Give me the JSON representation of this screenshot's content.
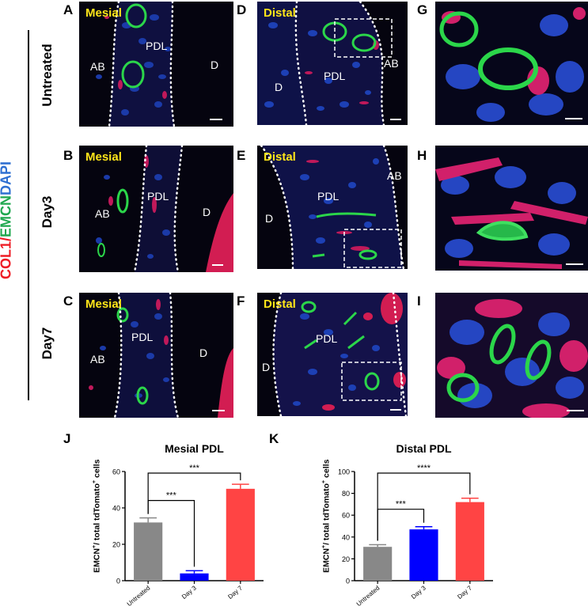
{
  "figure": {
    "side_label": {
      "col1": "COL1",
      "slash1": "/",
      "emcn": "EMCN",
      "slash2": "/",
      "dapi": "DAPI"
    },
    "colors": {
      "col1": "#ee1c25",
      "emcn": "#1fa84f",
      "dapi": "#2f6fd1",
      "yellow": "#ffe619",
      "dots": "#ffffff"
    },
    "row_labels": [
      "Untreated",
      "Day3",
      "Day7"
    ],
    "panels": [
      {
        "letter": "A",
        "tag": "Mesial",
        "labels": {
          "ab": "AB",
          "pdl": "PDL",
          "d": "D"
        }
      },
      {
        "letter": "D",
        "tag": "Distal",
        "labels": {
          "ab": "AB",
          "pdl": "PDL",
          "d": "D"
        }
      },
      {
        "letter": "G"
      },
      {
        "letter": "B",
        "tag": "Mesial",
        "labels": {
          "ab": "AB",
          "pdl": "PDL",
          "d": "D"
        }
      },
      {
        "letter": "E",
        "tag": "Distal",
        "labels": {
          "ab": "AB",
          "pdl": "PDL",
          "d": "D"
        }
      },
      {
        "letter": "H"
      },
      {
        "letter": "C",
        "tag": "Mesial",
        "labels": {
          "ab": "AB",
          "pdl": "PDL",
          "d": "D"
        }
      },
      {
        "letter": "F",
        "tag": "Distal",
        "labels": {
          "pdl": "PDL",
          "d": "D"
        }
      },
      {
        "letter": "I"
      }
    ]
  },
  "charts": {
    "J": {
      "letter": "J",
      "ylabel_main": "EMCN",
      "ylabel_sup1": "+",
      "ylabel_mid": "/ total tdTomato",
      "ylabel_sup2": "+",
      "ylabel_end": " cells"
    },
    "K": {
      "letter": "K",
      "ylabel_main": "EMCN",
      "ylabel_sup1": "+",
      "ylabel_mid": "/ total tdTomato",
      "ylabel_sup2": "+",
      "ylabel_end": " cells"
    }
  },
  "chart_data": [
    {
      "type": "bar",
      "title": "Mesial PDL",
      "categories": [
        "Untreated",
        "Day 3",
        "Day 7"
      ],
      "values": [
        32,
        4,
        50.5
      ],
      "errors": [
        2.5,
        1.5,
        2.5
      ],
      "colors": [
        "#888888",
        "#0000ff",
        "#ff4444"
      ],
      "ylim": [
        0,
        60
      ],
      "yticks": [
        0,
        20,
        40,
        60
      ],
      "significance": [
        {
          "from": "Untreated",
          "to": "Day 3",
          "label": "***"
        },
        {
          "from": "Untreated",
          "to": "Day 7",
          "label": "***"
        }
      ]
    },
    {
      "type": "bar",
      "title": "Distal PDL",
      "categories": [
        "Untreated",
        "Day 3",
        "Day 7"
      ],
      "values": [
        31,
        47,
        72
      ],
      "errors": [
        2,
        2.5,
        3.5
      ],
      "colors": [
        "#888888",
        "#0000ff",
        "#ff4444"
      ],
      "ylim": [
        0,
        100
      ],
      "yticks": [
        0,
        20,
        40,
        60,
        80,
        100
      ],
      "significance": [
        {
          "from": "Untreated",
          "to": "Day 3",
          "label": "***"
        },
        {
          "from": "Untreated",
          "to": "Day 7",
          "label": "****"
        }
      ]
    }
  ]
}
